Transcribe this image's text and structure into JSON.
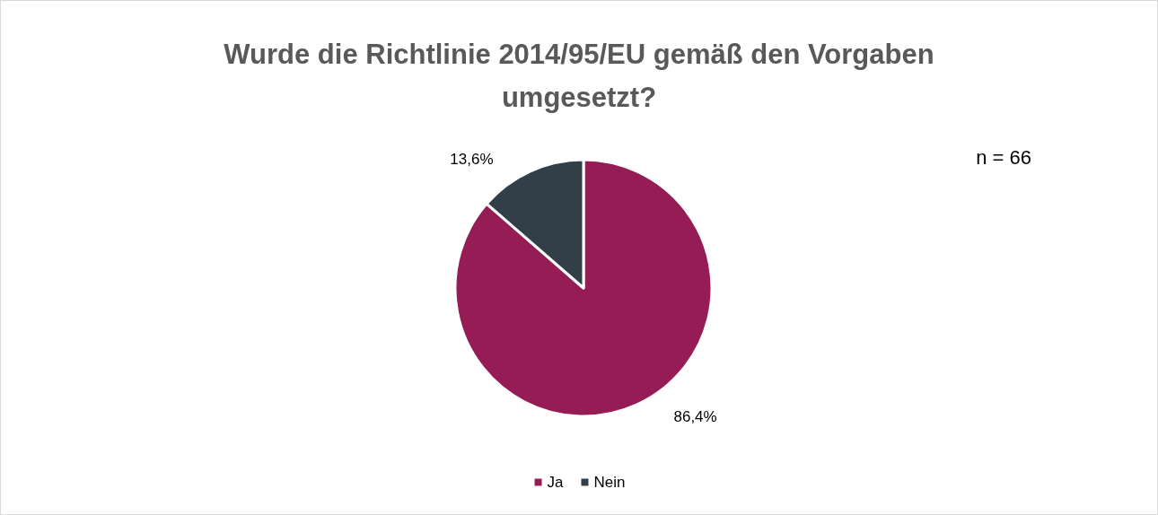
{
  "chart_data": {
    "type": "pie",
    "title": "Wurde die Richtlinie 2014/95/EU gemäß den Vorgaben\numgesetzt?",
    "categories": [
      "Ja",
      "Nein"
    ],
    "values": [
      86.4,
      13.6
    ],
    "value_labels": [
      "86,4%",
      "13,6%"
    ],
    "colors": [
      "#951c55",
      "#333f48"
    ],
    "annotations": [
      "n = 66"
    ],
    "legend": "bottom"
  }
}
